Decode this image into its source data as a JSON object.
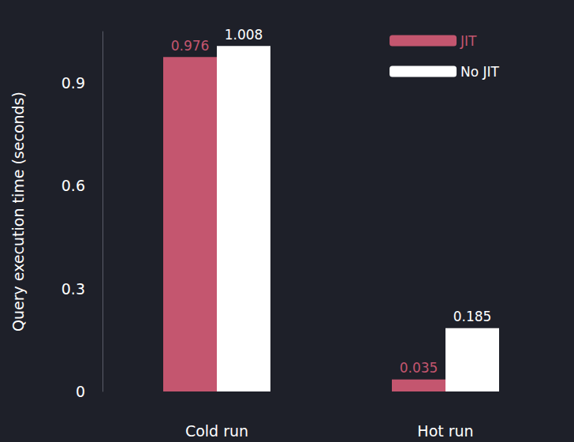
{
  "chart_data": {
    "type": "bar",
    "y_label": "Query execution time (seconds)",
    "categories": [
      "Cold run",
      "Hot run"
    ],
    "series": [
      {
        "name": "JIT",
        "color": "#c4566f",
        "values": [
          0.976,
          0.035
        ]
      },
      {
        "name": "No JIT",
        "color": "#ffffff",
        "values": [
          1.008,
          0.185
        ]
      }
    ],
    "ylim": [
      0,
      1.05
    ],
    "yticks": [
      0,
      0.3,
      0.6,
      0.9
    ],
    "grid": false,
    "legend": "upper right",
    "data_labels": true
  }
}
